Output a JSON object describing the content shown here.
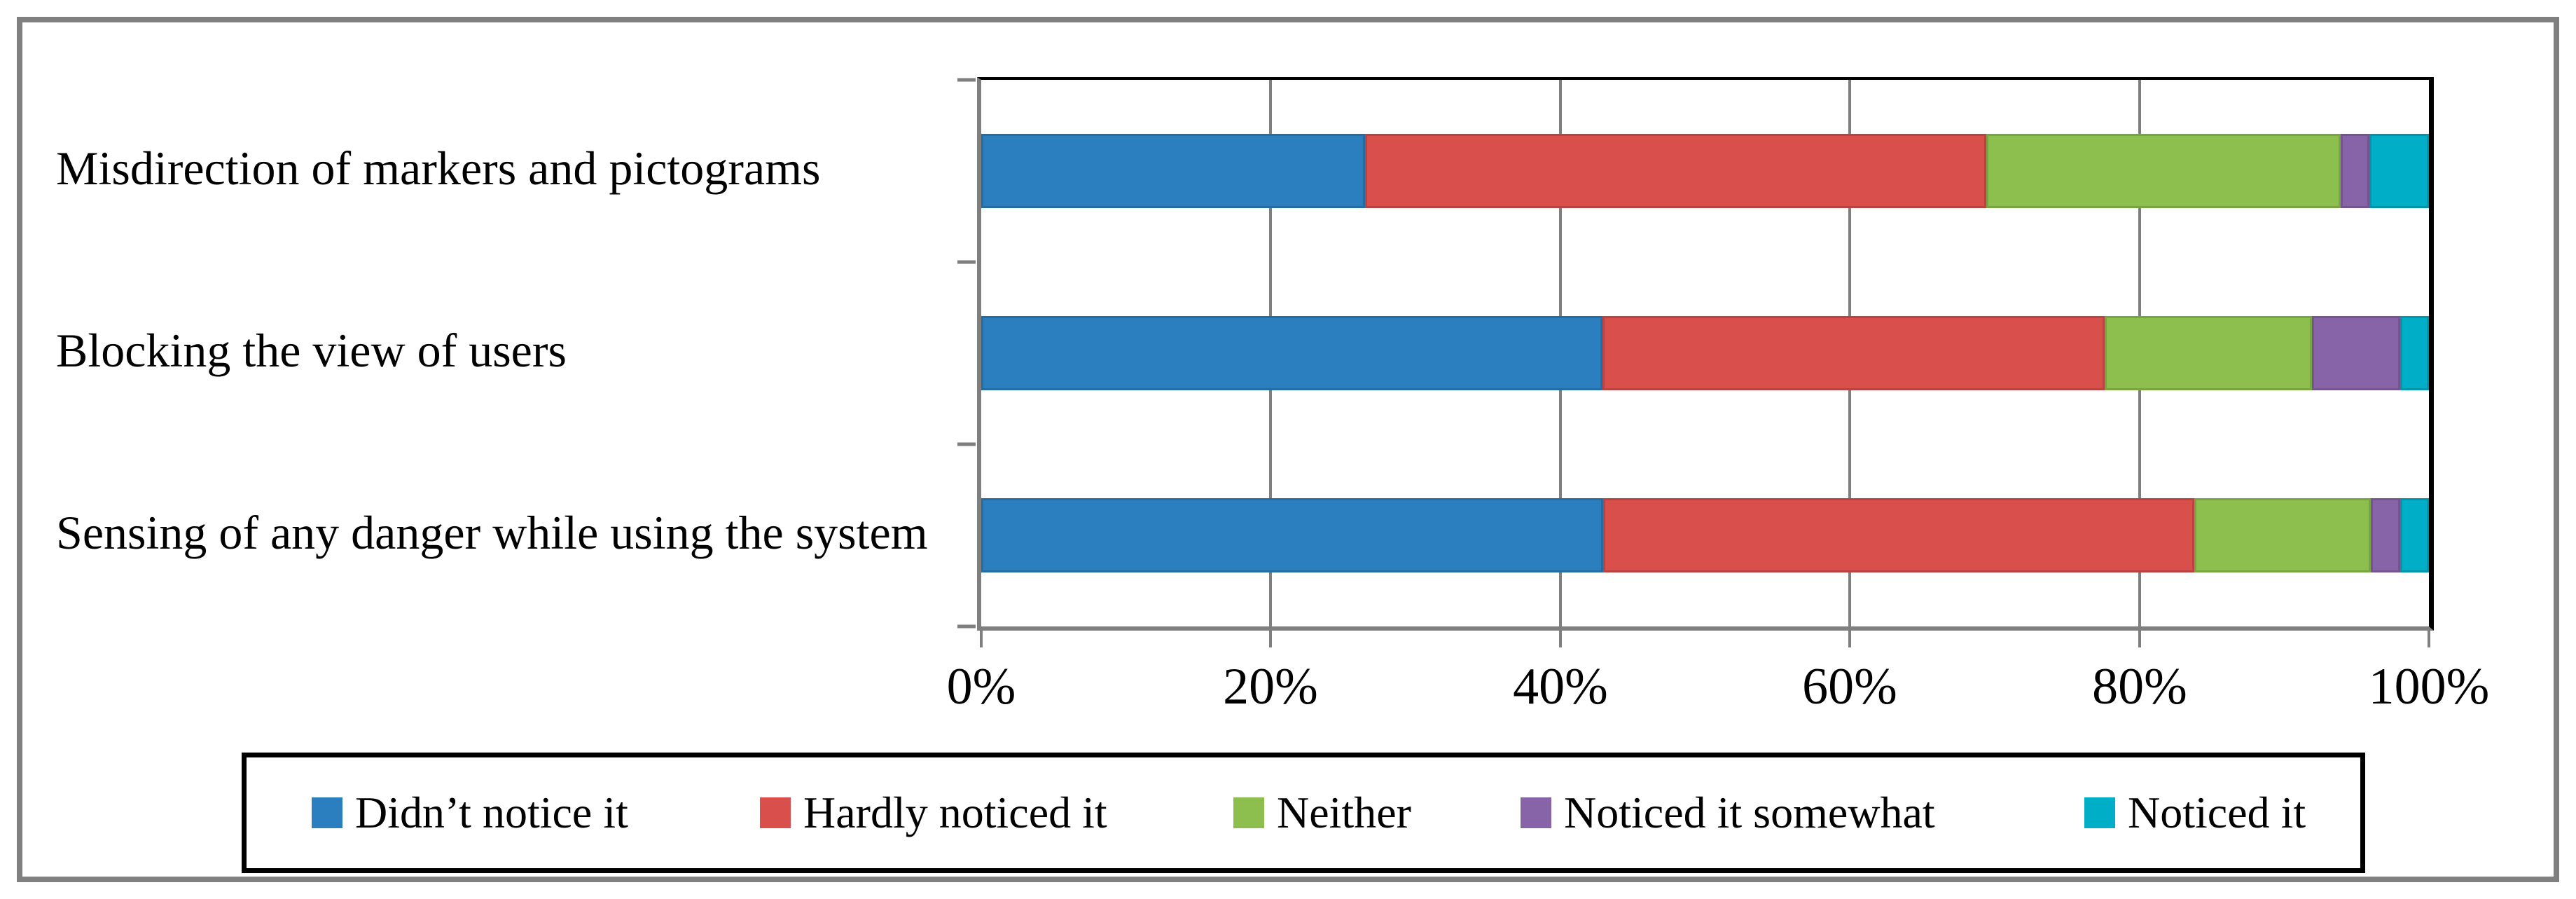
{
  "chart_data": {
    "type": "bar",
    "orientation": "horizontal",
    "stacked": true,
    "title": "",
    "xlabel": "",
    "ylabel": "",
    "xlim": [
      0,
      100
    ],
    "x_ticks": [
      "0%",
      "20%",
      "40%",
      "60%",
      "80%",
      "100%"
    ],
    "gridlines_percent": [
      20,
      40,
      60,
      80
    ],
    "grid_on": true,
    "legend_position": "bottom",
    "axis_color": "#7F7F7F",
    "categories": [
      "Misdirection of markers and pictograms",
      "Blocking the view of users",
      "Sensing of any danger while using the system"
    ],
    "series": [
      {
        "name": "Didn’t notice it",
        "color": "#2B7FBE",
        "values": [
          26.5,
          42.9,
          42.9
        ]
      },
      {
        "name": "Hardly noticed it",
        "color": "#D94F4C",
        "values": [
          42.9,
          34.7,
          40.8
        ]
      },
      {
        "name": "Neither",
        "color": "#8CBF4D",
        "values": [
          24.5,
          14.3,
          12.2
        ]
      },
      {
        "name": "Noticed it somewhat",
        "color": "#8764A8",
        "values": [
          2.0,
          6.1,
          2.0
        ]
      },
      {
        "name": "Noticed it",
        "color": "#00AEC7",
        "values": [
          4.1,
          2.0,
          2.0
        ]
      }
    ]
  }
}
